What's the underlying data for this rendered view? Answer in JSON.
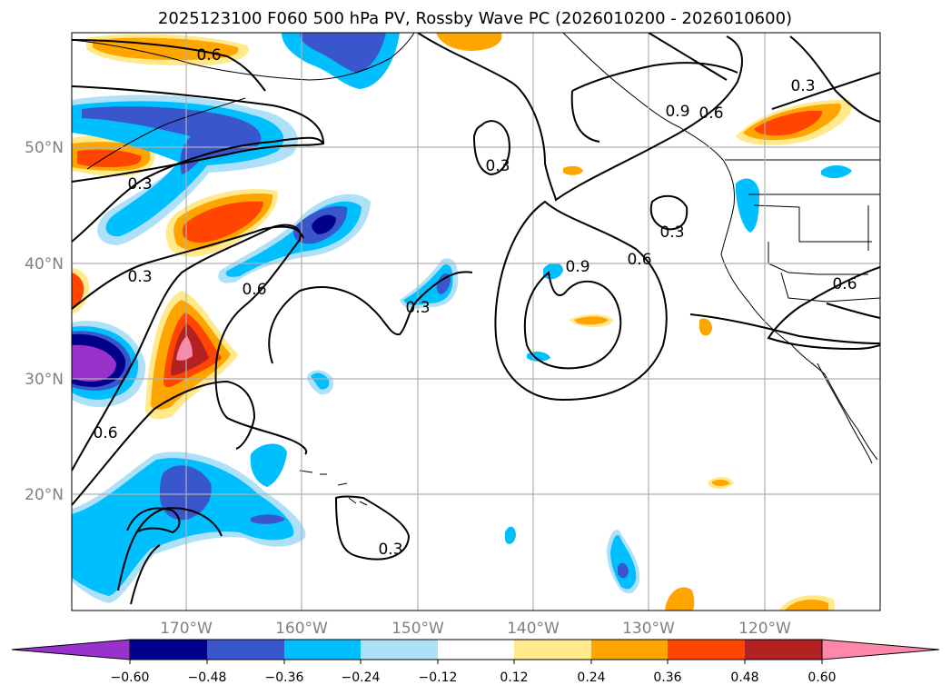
{
  "title": "2025123100 F060 500 hPa PV, Rossby Wave PC (2026010200 - 2026010600)",
  "map": {
    "lon_range": [
      -180,
      -110
    ],
    "lat_range": [
      10,
      60
    ],
    "lon_ticks": [
      "170°W",
      "160°W",
      "150°W",
      "140°W",
      "130°W",
      "120°W"
    ],
    "lat_ticks": [
      "50°N",
      "40°N",
      "30°N",
      "20°N"
    ],
    "contour_labels": [
      "0.6",
      "0.9",
      "0.6",
      "0.3",
      "0.3",
      "0.3",
      "0.3",
      "0.6",
      "0.3",
      "0.6",
      "0.9",
      "0.6",
      "0.3",
      "0.6",
      "0.3"
    ]
  },
  "colorbar": {
    "ticks": [
      "−0.60",
      "−0.48",
      "−0.36",
      "−0.24",
      "−0.12",
      "0.12",
      "0.24",
      "0.36",
      "0.48",
      "0.60"
    ],
    "colors": [
      "#9932cc",
      "#00008b",
      "#3a56cc",
      "#00bfff",
      "#aee0f8",
      "#ffffff",
      "#ffe98a",
      "#ffa500",
      "#ff4500",
      "#b22222",
      "#ff88aa"
    ]
  },
  "colors": {
    "land_line": "#000000",
    "grid": "#b0b0b0"
  }
}
